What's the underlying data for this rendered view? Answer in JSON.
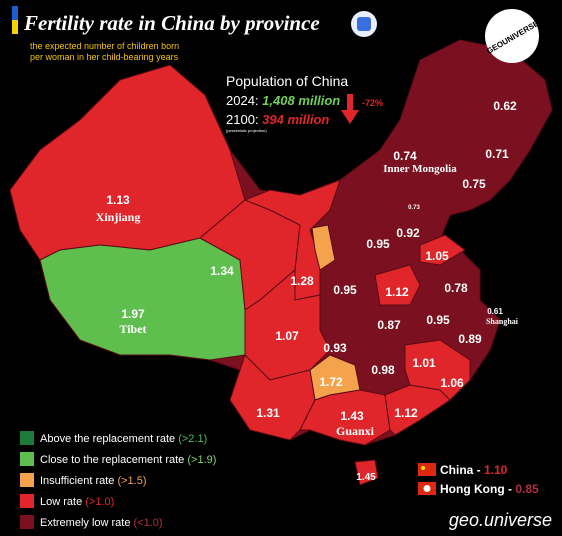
{
  "header": {
    "title": "Fertility rate in China by province",
    "subtitle_lines": [
      "the expected number of children born",
      "per woman in her child-bearing years"
    ],
    "brand": "GEOUNIVERSE"
  },
  "population": {
    "heading": "Population of China",
    "rows": [
      {
        "year": "2024:",
        "amount": "1,408 million"
      },
      {
        "year": "2100:",
        "amount": "394 million"
      }
    ],
    "note": "(pessimistic projection)",
    "change": "-72%"
  },
  "provinces": [
    {
      "value": "1.13",
      "name": "Xinjiang"
    },
    {
      "value": "1.97",
      "name": "Tibet"
    },
    {
      "value": "0.74",
      "name": "Inner Mongolia"
    },
    {
      "value": "0.61",
      "name": "Shanghai"
    },
    {
      "value": "1.43",
      "name": "Guanxi"
    },
    {
      "value": "0.62"
    },
    {
      "value": "0.71"
    },
    {
      "value": "0.75"
    },
    {
      "value": "0.73"
    },
    {
      "value": "1.34"
    },
    {
      "value": "1.28"
    },
    {
      "value": "0.95"
    },
    {
      "value": "0.92"
    },
    {
      "value": "1.05"
    },
    {
      "value": "0.95"
    },
    {
      "value": "1.12"
    },
    {
      "value": "0.78"
    },
    {
      "value": "0.87"
    },
    {
      "value": "0.95"
    },
    {
      "value": "0.89"
    },
    {
      "value": "1.07"
    },
    {
      "value": "0.93"
    },
    {
      "value": "1.72"
    },
    {
      "value": "0.98"
    },
    {
      "value": "1.01"
    },
    {
      "value": "1.06"
    },
    {
      "value": "1.31"
    },
    {
      "value": "1.12"
    },
    {
      "value": "1.45"
    }
  ],
  "legend": [
    {
      "label": "Above the replacement rate ",
      "threshold": "(>2.1)"
    },
    {
      "label": "Close to the replacement rate ",
      "threshold": "(>1.9)"
    },
    {
      "label": "Insufficient rate ",
      "threshold": "(>1.5)"
    },
    {
      "label": "Low rate ",
      "threshold": "(>1.0)"
    },
    {
      "label": "Extremely low rate ",
      "threshold": "(<1.0)"
    }
  ],
  "countries": [
    {
      "name": "China - ",
      "value": "1.10"
    },
    {
      "name": "Hong Kong - ",
      "value": "0.85"
    }
  ],
  "footer": "geo.universe"
}
